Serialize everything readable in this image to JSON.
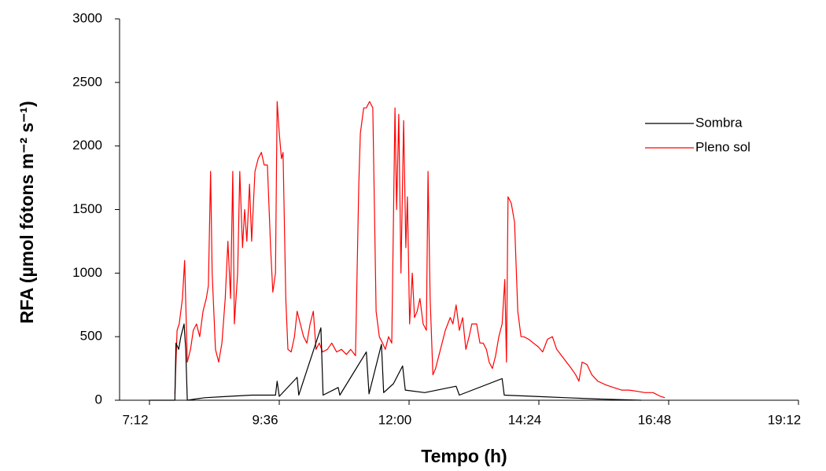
{
  "chart_data": {
    "type": "line",
    "xlabel": "Tempo (h)",
    "ylabel": "RFA (µmol fótons m⁻² s⁻¹)",
    "xlim": [
      7.2,
      19.2
    ],
    "xticks": [
      {
        "value": 7.2,
        "label": "7:12"
      },
      {
        "value": 9.6,
        "label": "9:36"
      },
      {
        "value": 12,
        "label": "12:00"
      },
      {
        "value": 14.4,
        "label": "14:24"
      },
      {
        "value": 16.8,
        "label": "16:48"
      },
      {
        "value": 19.2,
        "label": "19:12"
      }
    ],
    "ylim": [
      0,
      3000
    ],
    "yticks": [
      0,
      500,
      1000,
      1500,
      2000,
      2500,
      3000
    ],
    "legend": "top-right",
    "series": [
      {
        "name": "Sombra",
        "color": "#000000",
        "x": [
          7.2,
          7.67,
          7.69,
          7.74,
          7.78,
          7.84,
          7.87,
          7.9,
          8.22,
          8.65,
          9.09,
          9.53,
          9.56,
          9.6,
          9.93,
          9.96,
          10.37,
          10.41,
          10.69,
          10.72,
          11.21,
          11.26,
          11.49,
          11.53,
          11.71,
          11.88,
          11.93,
          12.29,
          12.87,
          12.93,
          13.72,
          13.76,
          14.33,
          14.91,
          15.49,
          16.29
        ],
        "values": [
          0,
          0,
          450,
          400,
          500,
          600,
          400,
          0,
          20,
          30,
          40,
          40,
          150,
          30,
          180,
          40,
          570,
          40,
          100,
          40,
          380,
          50,
          440,
          60,
          130,
          270,
          80,
          60,
          110,
          40,
          170,
          40,
          30,
          20,
          10,
          0
        ]
      },
      {
        "name": "Pleno sol",
        "color": "#ff0000",
        "x": [
          7.67,
          7.71,
          7.75,
          7.81,
          7.85,
          7.9,
          7.96,
          8.01,
          8.07,
          8.13,
          8.19,
          8.25,
          8.29,
          8.33,
          8.36,
          8.42,
          8.48,
          8.54,
          8.6,
          8.65,
          8.7,
          8.74,
          8.77,
          8.83,
          8.87,
          8.92,
          8.96,
          9.0,
          9.05,
          9.09,
          9.15,
          9.21,
          9.27,
          9.32,
          9.38,
          9.44,
          9.48,
          9.53,
          9.56,
          9.6,
          9.64,
          9.67,
          9.72,
          9.76,
          9.82,
          9.88,
          9.93,
          9.99,
          10.05,
          10.11,
          10.17,
          10.23,
          10.28,
          10.34,
          10.4,
          10.49,
          10.57,
          10.66,
          10.75,
          10.84,
          10.92,
          11.01,
          11.07,
          11.1,
          11.16,
          11.21,
          11.27,
          11.33,
          11.39,
          11.45,
          11.51,
          11.56,
          11.62,
          11.68,
          11.74,
          11.77,
          11.81,
          11.85,
          11.9,
          11.94,
          11.97,
          12.01,
          12.06,
          12.1,
          12.15,
          12.2,
          12.26,
          12.32,
          12.35,
          12.39,
          12.44,
          12.49,
          12.58,
          12.67,
          12.76,
          12.81,
          12.87,
          12.93,
          12.99,
          13.05,
          13.11,
          13.16,
          13.25,
          13.31,
          13.37,
          13.43,
          13.48,
          13.54,
          13.6,
          13.66,
          13.72,
          13.77,
          13.8,
          13.83,
          13.89,
          13.95,
          14.01,
          14.07,
          14.12,
          14.21,
          14.3,
          14.39,
          14.47,
          14.56,
          14.65,
          14.73,
          14.82,
          14.91,
          15.0,
          15.08,
          15.14,
          15.2,
          15.29,
          15.38,
          15.49,
          15.64,
          15.78,
          15.93,
          16.07,
          16.22,
          16.36,
          16.51,
          16.65,
          16.73
        ],
        "values": [
          50,
          550,
          600,
          800,
          1100,
          300,
          400,
          550,
          600,
          500,
          700,
          800,
          900,
          1800,
          1000,
          400,
          300,
          450,
          800,
          1250,
          800,
          1800,
          600,
          1000,
          1800,
          1200,
          1500,
          1250,
          1700,
          1250,
          1800,
          1900,
          1950,
          1850,
          1850,
          1200,
          850,
          1000,
          2350,
          2100,
          1900,
          1950,
          800,
          400,
          380,
          500,
          700,
          600,
          500,
          450,
          600,
          700,
          400,
          450,
          380,
          400,
          450,
          380,
          400,
          360,
          400,
          350,
          1700,
          2100,
          2300,
          2300,
          2350,
          2300,
          700,
          500,
          450,
          400,
          500,
          450,
          2300,
          1500,
          2250,
          1000,
          2200,
          1200,
          1600,
          600,
          1000,
          650,
          700,
          800,
          600,
          550,
          1800,
          800,
          200,
          250,
          400,
          550,
          650,
          600,
          750,
          550,
          650,
          400,
          500,
          600,
          600,
          450,
          450,
          400,
          300,
          250,
          350,
          500,
          600,
          950,
          300,
          1600,
          1550,
          1400,
          700,
          500,
          500,
          480,
          450,
          420,
          380,
          480,
          500,
          400,
          350,
          300,
          250,
          200,
          150,
          300,
          280,
          200,
          150,
          120,
          100,
          80,
          80,
          70,
          60,
          60,
          30,
          20
        ]
      }
    ]
  }
}
